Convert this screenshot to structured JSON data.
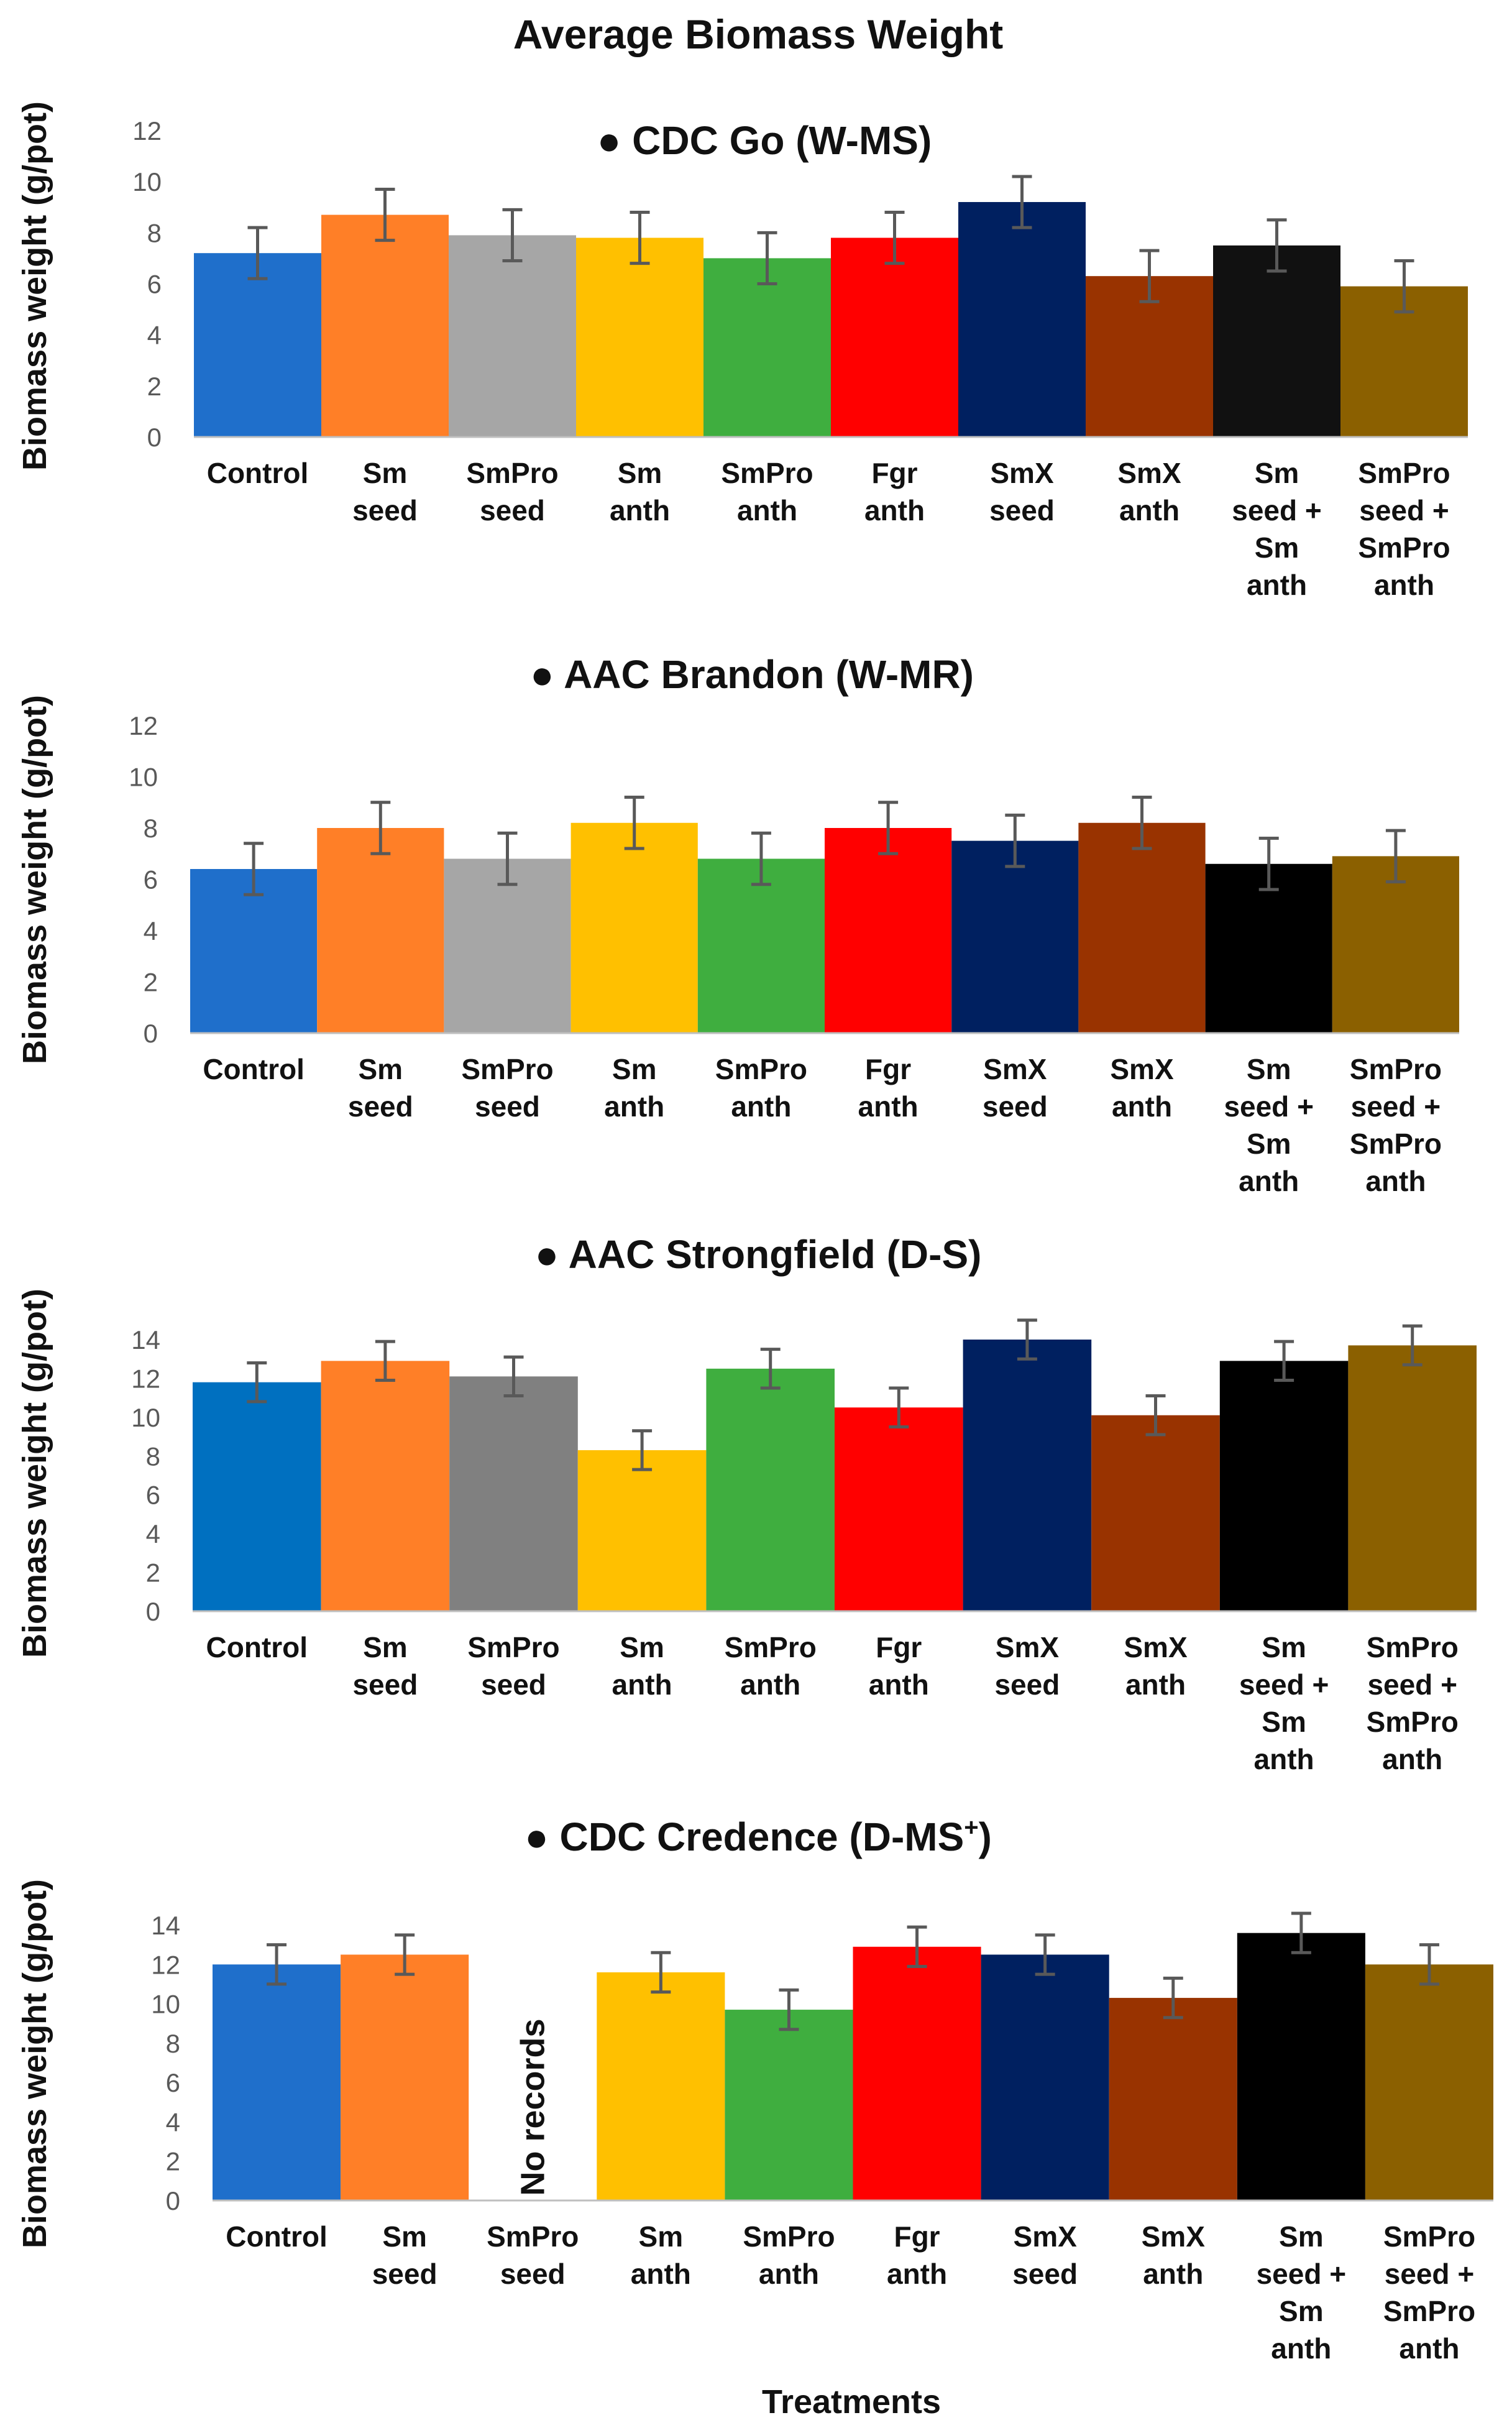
{
  "chart_data": {
    "title": "Average Biomass Weight",
    "xlabel": "Treatments",
    "categories": [
      [
        "Control"
      ],
      [
        "Sm",
        "seed"
      ],
      [
        "SmPro",
        "seed"
      ],
      [
        "Sm",
        "anth"
      ],
      [
        "SmPro",
        "anth"
      ],
      [
        "Fgr",
        "anth"
      ],
      [
        "SmX",
        "seed"
      ],
      [
        "SmX",
        "anth"
      ],
      [
        "Sm",
        "seed +",
        "Sm",
        "anth"
      ],
      [
        "SmPro",
        "seed +",
        "SmPro",
        "anth"
      ]
    ],
    "charts": [
      {
        "type": "bar",
        "title": "CDC Go (W-MS)",
        "superscript": "",
        "ylabel": "Biomass weight (g/pot)",
        "ylim": [
          0,
          12
        ],
        "yticks": [
          0,
          2,
          4,
          6,
          8,
          10,
          12
        ],
        "values": [
          7.2,
          8.7,
          7.9,
          7.8,
          7.0,
          7.8,
          9.2,
          6.3,
          7.5,
          5.9
        ],
        "errors": [
          1.0,
          1.0,
          1.0,
          1.0,
          1.0,
          1.0,
          1.0,
          1.0,
          1.0,
          1.0
        ],
        "colors": [
          "#1F6FCB",
          "#FF7F27",
          "#A6A6A6",
          "#FFC000",
          "#3FAE3F",
          "#FF0000",
          "#002060",
          "#993300",
          "#111111",
          "#8B6000"
        ],
        "no_records_label": ""
      },
      {
        "type": "bar",
        "title": "AAC Brandon (W-MR)",
        "superscript": "",
        "ylabel": "Biomass weight (g/pot)",
        "ylim": [
          0,
          12
        ],
        "yticks": [
          0,
          2,
          4,
          6,
          8,
          10,
          12
        ],
        "values": [
          6.4,
          8.0,
          6.8,
          8.2,
          6.8,
          8.0,
          7.5,
          8.2,
          6.6,
          6.9
        ],
        "errors": [
          1.0,
          1.0,
          1.0,
          1.0,
          1.0,
          1.0,
          1.0,
          1.0,
          1.0,
          1.0
        ],
        "colors": [
          "#1F6FCB",
          "#FF7F27",
          "#A6A6A6",
          "#FFC000",
          "#3FAE3F",
          "#FF0000",
          "#002060",
          "#993300",
          "#000000",
          "#8B6000"
        ],
        "no_records_label": ""
      },
      {
        "type": "bar",
        "title": "AAC Strongfield (D-S)",
        "superscript": "",
        "ylabel": "Biomass weight (g/pot)",
        "ylim": [
          0,
          14
        ],
        "yticks": [
          0,
          2,
          4,
          6,
          8,
          10,
          12,
          14
        ],
        "values": [
          11.8,
          12.9,
          12.1,
          8.3,
          12.5,
          10.5,
          14.0,
          10.1,
          12.9,
          13.7
        ],
        "errors": [
          1.0,
          1.0,
          1.0,
          1.0,
          1.0,
          1.0,
          1.0,
          1.0,
          1.0,
          1.0
        ],
        "colors": [
          "#0070C0",
          "#FF7F27",
          "#808080",
          "#FFC000",
          "#3FAE3F",
          "#FF0000",
          "#002060",
          "#993300",
          "#000000",
          "#8B6000"
        ],
        "no_records_label": ""
      },
      {
        "type": "bar",
        "title": "CDC Credence (D-MS",
        "superscript": "+",
        "title_suffix": ")",
        "ylabel": "Biomass weight (g/pot)",
        "ylim": [
          0,
          14
        ],
        "yticks": [
          0,
          2,
          4,
          6,
          8,
          10,
          12,
          14
        ],
        "values": [
          12.0,
          12.5,
          null,
          11.6,
          9.7,
          12.9,
          12.5,
          10.3,
          13.6,
          12.0
        ],
        "errors": [
          1.0,
          1.0,
          null,
          1.0,
          1.0,
          1.0,
          1.0,
          1.0,
          1.0,
          1.0
        ],
        "colors": [
          "#1F6FCB",
          "#FF7F27",
          "#A6A6A6",
          "#FFC000",
          "#3FAE3F",
          "#FF0000",
          "#002060",
          "#993300",
          "#000000",
          "#8B6000"
        ],
        "no_records_label": "No records"
      }
    ]
  }
}
